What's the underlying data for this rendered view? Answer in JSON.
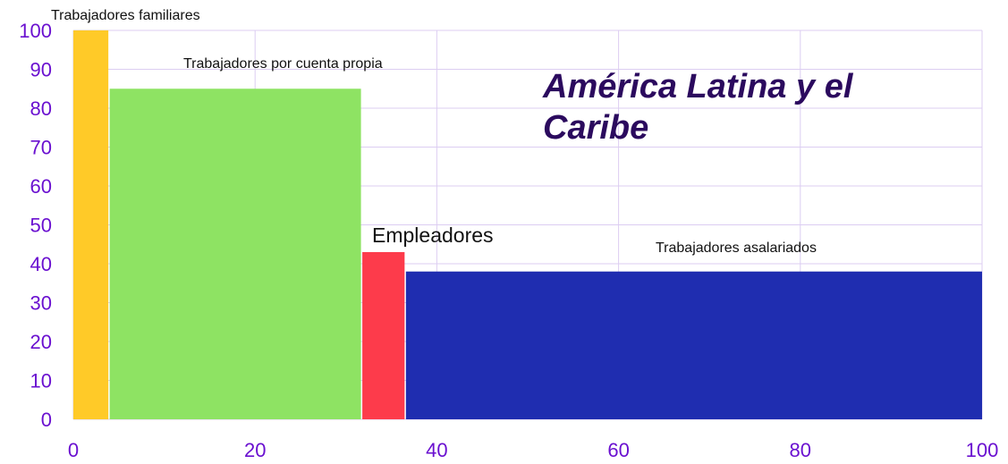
{
  "chart_data": {
    "type": "variable-width-bar",
    "title": "América Latina y el Caribe",
    "categories": [
      "Trabajadores familiares",
      "Trabajadores por cuenta propia",
      "Empleadores",
      "Trabajadores asalariados"
    ],
    "widths": [
      4,
      27.8,
      4.8,
      63.4
    ],
    "values": [
      100,
      85,
      43,
      38
    ],
    "colors": [
      "#ffca28",
      "#8ee363",
      "#fd3b4b",
      "#1f2db0"
    ],
    "xlim": [
      0,
      100
    ],
    "xticks": [
      0,
      20,
      40,
      60,
      80,
      100
    ],
    "ylim": [
      0,
      100
    ],
    "yticks": [
      0,
      10,
      20,
      30,
      40,
      50,
      60,
      70,
      80,
      90,
      100
    ],
    "grid": true
  }
}
